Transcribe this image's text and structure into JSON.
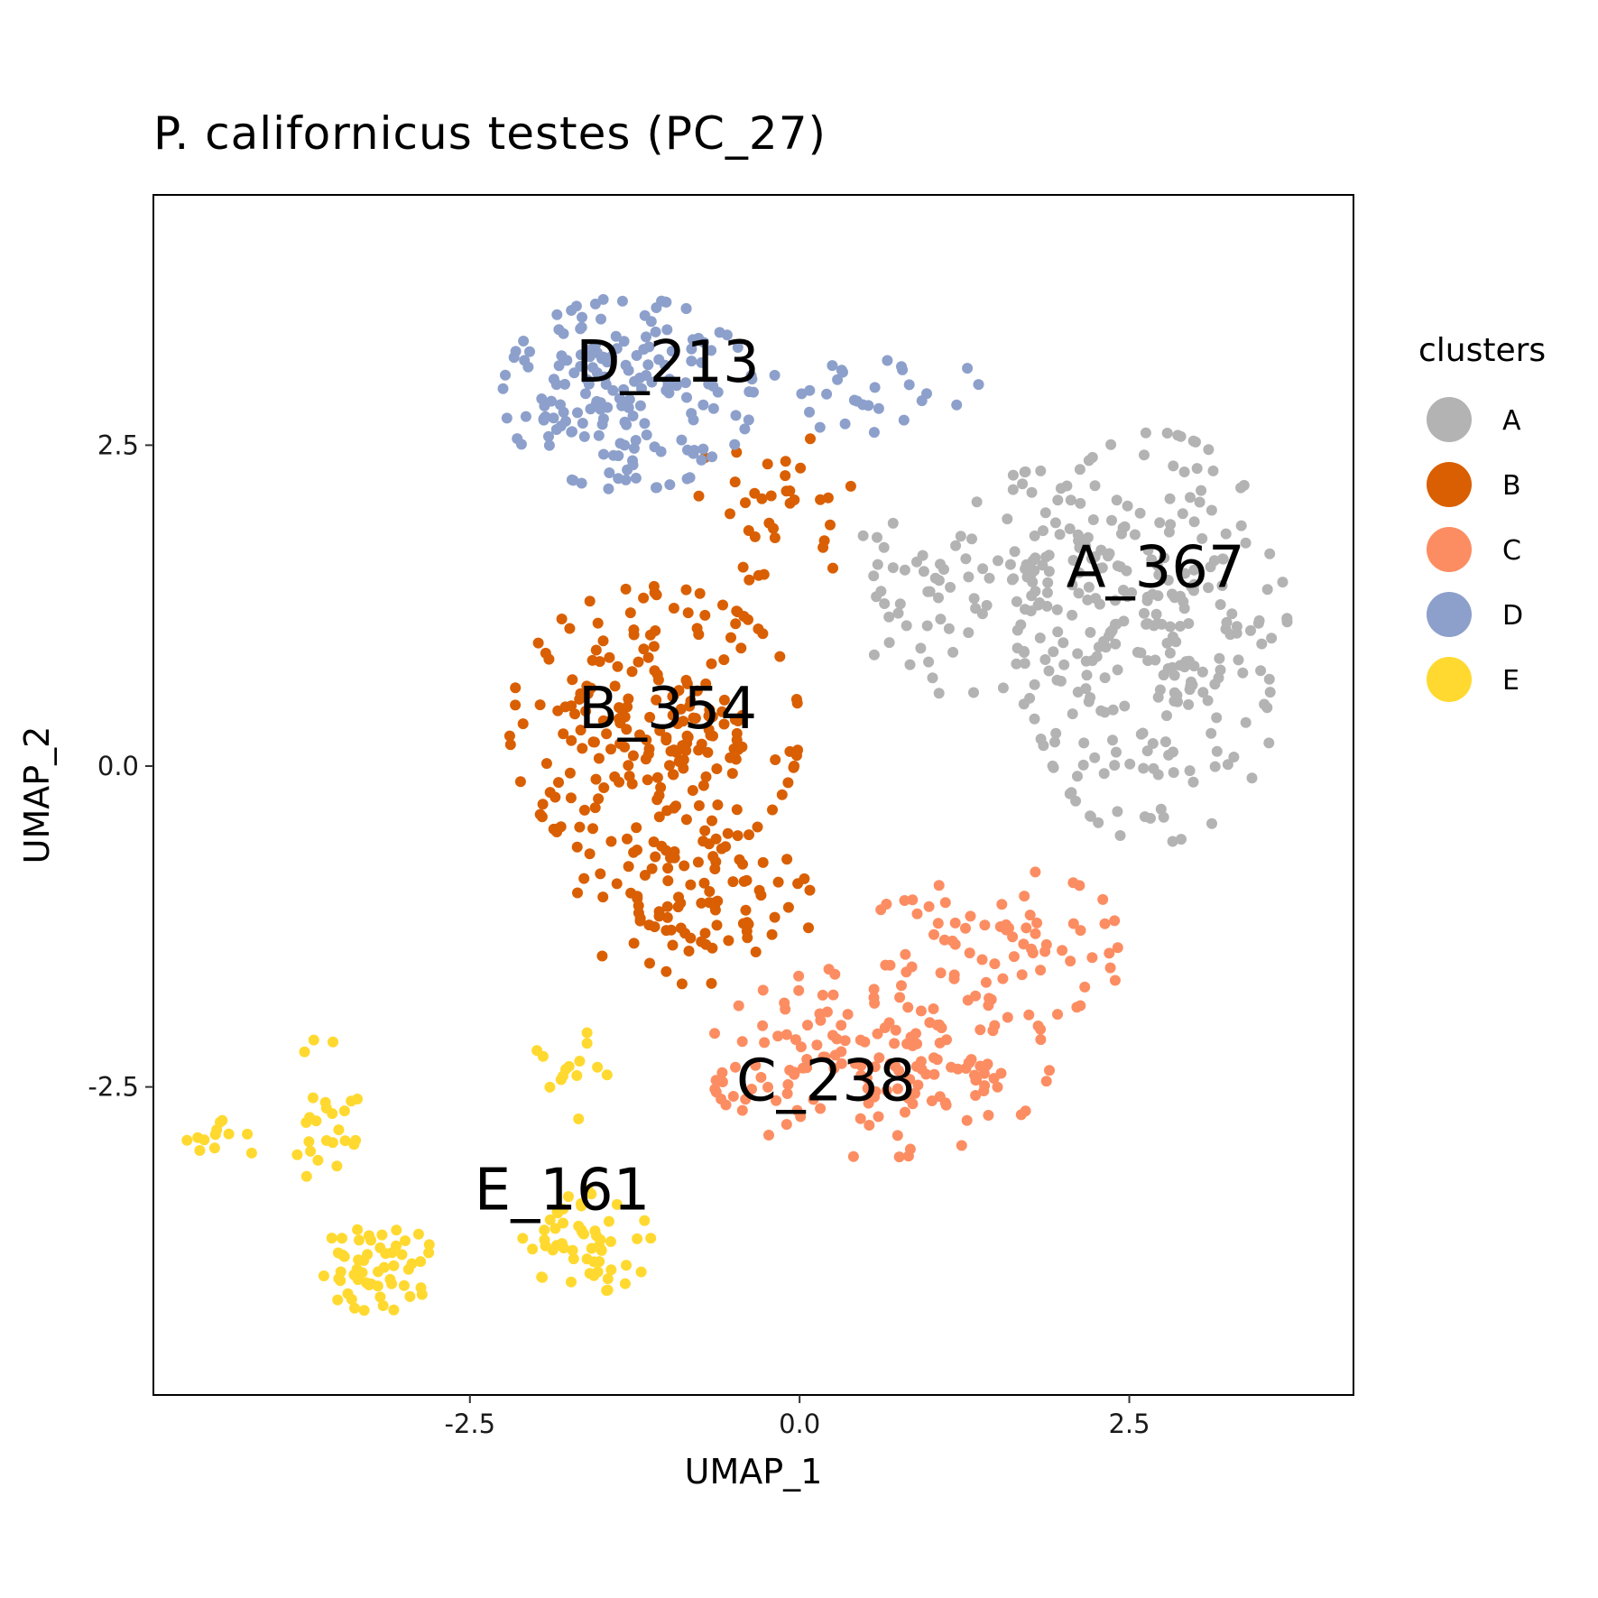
{
  "chart_data": {
    "type": "scatter",
    "title": "P. californicus testes (PC_27)",
    "xlabel": "UMAP_1",
    "ylabel": "UMAP_2",
    "xlim": [
      -4.9,
      4.2
    ],
    "ylim": [
      -4.9,
      4.45
    ],
    "x_ticks": [
      {
        "value": -2.5,
        "label": "-2.5"
      },
      {
        "value": 0.0,
        "label": "0.0"
      },
      {
        "value": 2.5,
        "label": "2.5"
      }
    ],
    "y_ticks": [
      {
        "value": 2.5,
        "label": "2.5"
      },
      {
        "value": 0.0,
        "label": "0.0"
      },
      {
        "value": -2.5,
        "label": "-2.5"
      }
    ],
    "grid": false,
    "legend": {
      "title": "clusters",
      "placement": "right",
      "entries": [
        {
          "name": "A",
          "color": "#B3B3B3"
        },
        {
          "name": "B",
          "color": "#D95F02"
        },
        {
          "name": "C",
          "color": "#FC8D62"
        },
        {
          "name": "D",
          "color": "#8DA0CB"
        },
        {
          "name": "E",
          "color": "#FFD92F"
        }
      ]
    },
    "cluster_labels": [
      {
        "text": "A_367",
        "x": 2.7,
        "y": 1.55
      },
      {
        "text": "B_354",
        "x": -1.0,
        "y": 0.45
      },
      {
        "text": "C_238",
        "x": 0.2,
        "y": -2.45
      },
      {
        "text": "D_213",
        "x": -1.0,
        "y": 3.15
      },
      {
        "text": "E_161",
        "x": -1.8,
        "y": -3.3
      }
    ],
    "series": [
      {
        "name": "A",
        "color": "#B3B3B3",
        "regions": [
          {
            "cx": 2.7,
            "cy": 1.0,
            "rx": 1.0,
            "ry": 1.6,
            "n": 260
          },
          {
            "cx": 1.8,
            "cy": 1.3,
            "rx": 0.7,
            "ry": 1.0,
            "n": 70
          },
          {
            "cx": 0.8,
            "cy": 1.2,
            "rx": 0.6,
            "ry": 0.7,
            "n": 37
          }
        ]
      },
      {
        "name": "B",
        "color": "#D95F02",
        "regions": [
          {
            "cx": -1.1,
            "cy": 0.3,
            "rx": 1.1,
            "ry": 1.1,
            "n": 230
          },
          {
            "cx": -0.8,
            "cy": -1.1,
            "rx": 0.9,
            "ry": 0.6,
            "n": 90
          },
          {
            "cx": -0.2,
            "cy": 2.0,
            "rx": 0.7,
            "ry": 0.6,
            "n": 34
          }
        ]
      },
      {
        "name": "C",
        "color": "#FC8D62",
        "regions": [
          {
            "cx": 0.6,
            "cy": -2.3,
            "rx": 1.3,
            "ry": 0.75,
            "n": 170
          },
          {
            "cx": 1.5,
            "cy": -1.4,
            "rx": 1.0,
            "ry": 0.6,
            "n": 68
          }
        ]
      },
      {
        "name": "D",
        "color": "#8DA0CB",
        "regions": [
          {
            "cx": -1.3,
            "cy": 2.9,
            "rx": 0.95,
            "ry": 0.75,
            "n": 185
          },
          {
            "cx": 0.6,
            "cy": 2.9,
            "rx": 0.9,
            "ry": 0.3,
            "n": 28
          }
        ]
      },
      {
        "name": "E",
        "color": "#FFD92F",
        "regions": [
          {
            "cx": -3.2,
            "cy": -3.9,
            "rx": 0.45,
            "ry": 0.35,
            "n": 55
          },
          {
            "cx": -1.6,
            "cy": -3.7,
            "rx": 0.5,
            "ry": 0.4,
            "n": 55
          },
          {
            "cx": -3.6,
            "cy": -2.7,
            "rx": 0.25,
            "ry": 0.6,
            "n": 25
          },
          {
            "cx": -4.4,
            "cy": -2.9,
            "rx": 0.3,
            "ry": 0.2,
            "n": 12
          },
          {
            "cx": -1.7,
            "cy": -2.3,
            "rx": 0.35,
            "ry": 0.45,
            "n": 14
          }
        ]
      }
    ]
  }
}
